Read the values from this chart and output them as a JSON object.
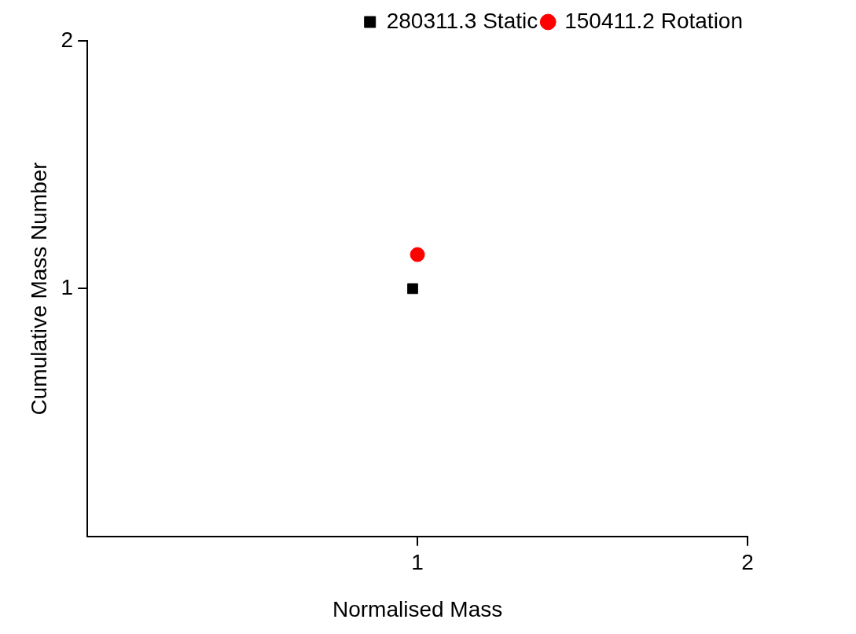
{
  "chart_data": {
    "type": "scatter",
    "xlabel": "Normalised Mass",
    "ylabel": "Cumulative Mass Number",
    "log": "xy",
    "xlim": [
      0.5,
      2
    ],
    "ylim": [
      0.5,
      2
    ],
    "xticks": [
      1,
      2
    ],
    "yticks": [
      1,
      2
    ],
    "grid": false,
    "legend": "top right",
    "series": [
      {
        "name": "280311.3 Static",
        "color": "#000000",
        "marker": "square",
        "x": [
          0.99
        ],
        "values": [
          1.0
        ]
      },
      {
        "name": "150411.2 Rotation",
        "color": "#ff0000",
        "marker": "circle",
        "x": [
          1.0
        ],
        "values": [
          1.1
        ]
      }
    ]
  }
}
